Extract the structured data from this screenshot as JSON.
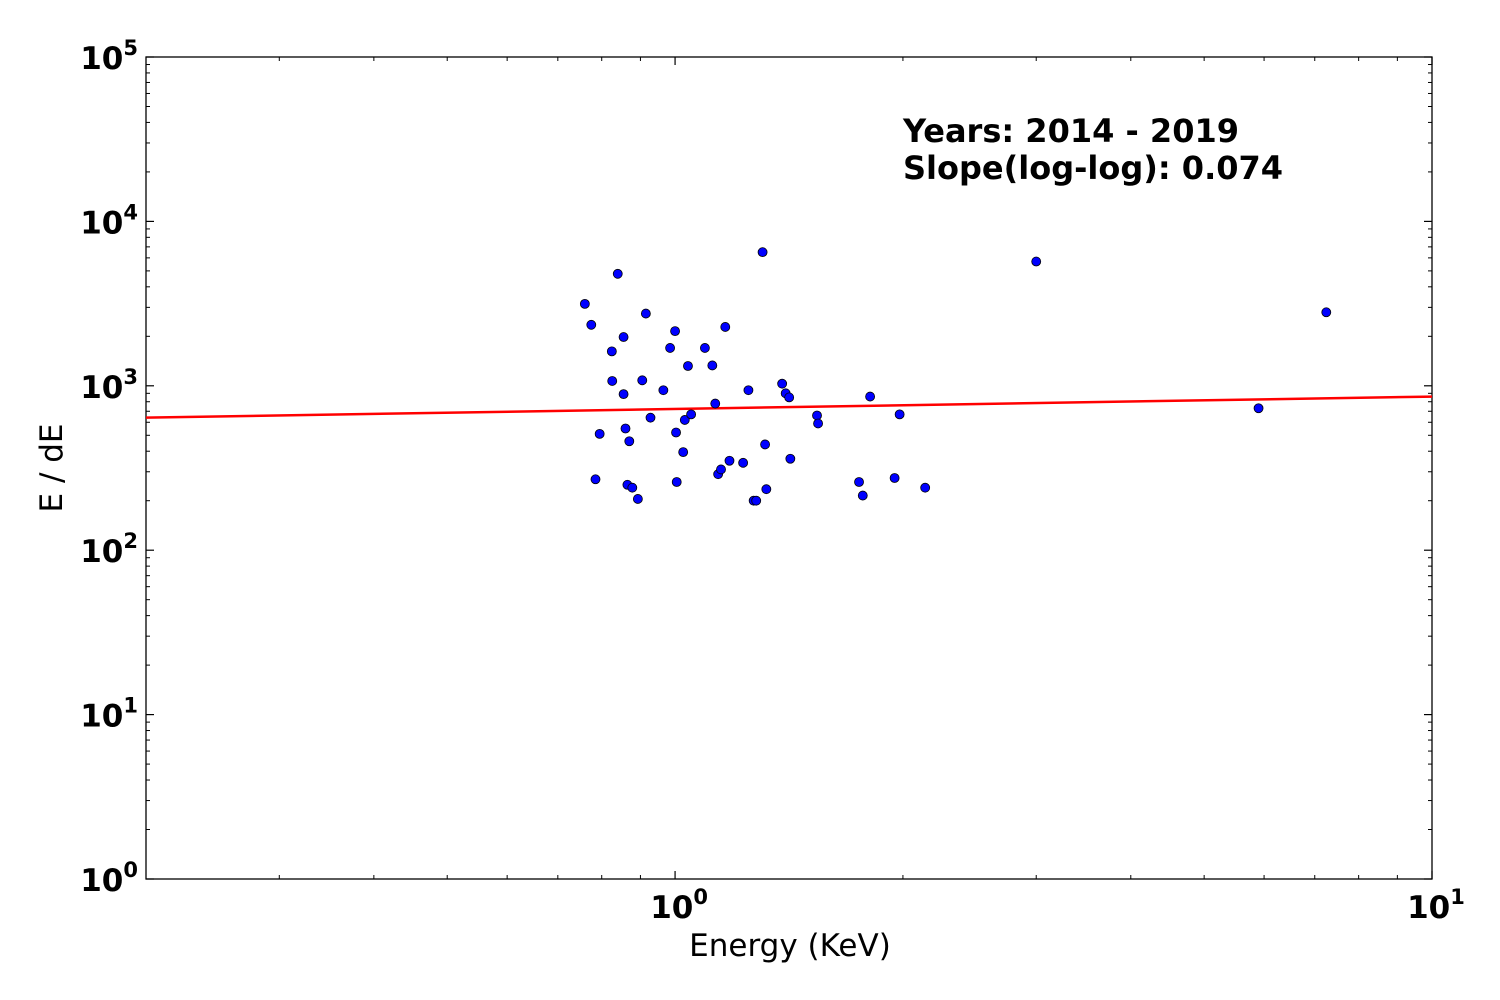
{
  "chart_data": {
    "type": "scatter",
    "title": "",
    "xlabel": "Energy (KeV)",
    "ylabel": "E / dE",
    "xscale": "log",
    "yscale": "log",
    "xlim": [
      0.2,
      10
    ],
    "ylim": [
      1,
      100000
    ],
    "grid": false,
    "x_ticks": [
      {
        "value": 1,
        "base": "10",
        "exp": "0"
      },
      {
        "value": 10,
        "base": "10",
        "exp": "1"
      }
    ],
    "y_ticks": [
      {
        "value": 1,
        "base": "10",
        "exp": "0"
      },
      {
        "value": 10,
        "base": "10",
        "exp": "1"
      },
      {
        "value": 100,
        "base": "10",
        "exp": "2"
      },
      {
        "value": 1000,
        "base": "10",
        "exp": "3"
      },
      {
        "value": 10000,
        "base": "10",
        "exp": "4"
      },
      {
        "value": 100000,
        "base": "10",
        "exp": "5"
      }
    ],
    "annotations": [
      "Years: 2014 - 2019",
      "Slope(log-log): 0.074"
    ],
    "point_color": "#0000ff",
    "fit_color": "#ff0000",
    "fit_line": {
      "x": [
        0.2,
        10
      ],
      "y": [
        640,
        860
      ]
    },
    "points": [
      {
        "x": 0.76,
        "y": 3150
      },
      {
        "x": 0.775,
        "y": 2350
      },
      {
        "x": 0.785,
        "y": 270
      },
      {
        "x": 0.795,
        "y": 510
      },
      {
        "x": 0.825,
        "y": 1620
      },
      {
        "x": 0.826,
        "y": 1070
      },
      {
        "x": 0.84,
        "y": 4800
      },
      {
        "x": 0.855,
        "y": 1980
      },
      {
        "x": 0.855,
        "y": 890
      },
      {
        "x": 0.86,
        "y": 550
      },
      {
        "x": 0.865,
        "y": 250
      },
      {
        "x": 0.87,
        "y": 460
      },
      {
        "x": 0.878,
        "y": 240
      },
      {
        "x": 0.893,
        "y": 205
      },
      {
        "x": 0.905,
        "y": 1080
      },
      {
        "x": 0.915,
        "y": 2750
      },
      {
        "x": 0.928,
        "y": 640
      },
      {
        "x": 0.965,
        "y": 940
      },
      {
        "x": 0.985,
        "y": 1700
      },
      {
        "x": 1.0,
        "y": 2150
      },
      {
        "x": 1.003,
        "y": 520
      },
      {
        "x": 1.005,
        "y": 260
      },
      {
        "x": 1.025,
        "y": 395
      },
      {
        "x": 1.03,
        "y": 620
      },
      {
        "x": 1.04,
        "y": 1320
      },
      {
        "x": 1.05,
        "y": 670
      },
      {
        "x": 1.095,
        "y": 1700
      },
      {
        "x": 1.12,
        "y": 1330
      },
      {
        "x": 1.13,
        "y": 780
      },
      {
        "x": 1.14,
        "y": 290
      },
      {
        "x": 1.15,
        "y": 310
      },
      {
        "x": 1.165,
        "y": 2280
      },
      {
        "x": 1.18,
        "y": 350
      },
      {
        "x": 1.23,
        "y": 340
      },
      {
        "x": 1.25,
        "y": 940
      },
      {
        "x": 1.27,
        "y": 200
      },
      {
        "x": 1.28,
        "y": 200
      },
      {
        "x": 1.305,
        "y": 6500
      },
      {
        "x": 1.315,
        "y": 440
      },
      {
        "x": 1.32,
        "y": 235
      },
      {
        "x": 1.385,
        "y": 1030
      },
      {
        "x": 1.4,
        "y": 900
      },
      {
        "x": 1.415,
        "y": 850
      },
      {
        "x": 1.42,
        "y": 360
      },
      {
        "x": 1.54,
        "y": 660
      },
      {
        "x": 1.545,
        "y": 590
      },
      {
        "x": 1.75,
        "y": 260
      },
      {
        "x": 1.77,
        "y": 215
      },
      {
        "x": 1.81,
        "y": 860
      },
      {
        "x": 1.95,
        "y": 275
      },
      {
        "x": 1.98,
        "y": 670
      },
      {
        "x": 2.14,
        "y": 240
      },
      {
        "x": 3.0,
        "y": 5700
      },
      {
        "x": 5.9,
        "y": 730
      },
      {
        "x": 7.25,
        "y": 2800
      }
    ]
  }
}
